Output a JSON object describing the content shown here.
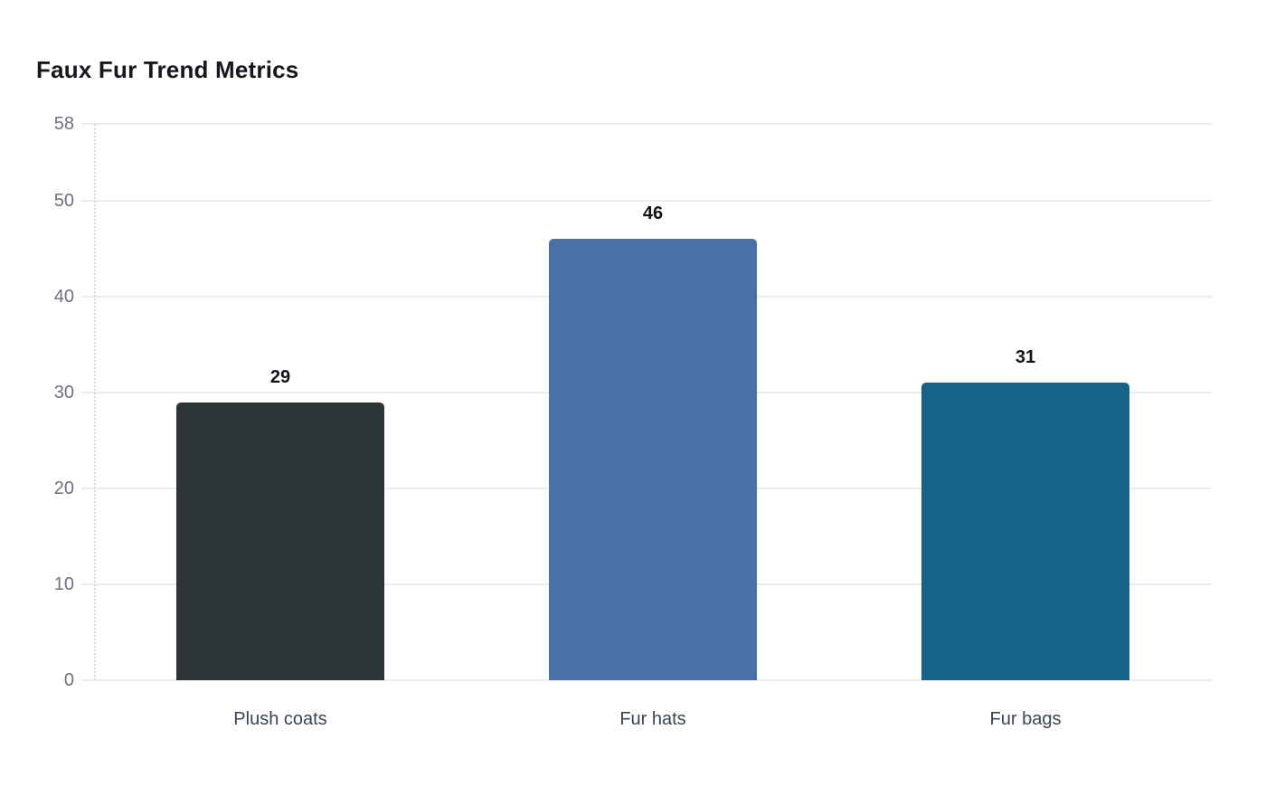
{
  "chart_data": {
    "type": "bar",
    "title": "Faux Fur Trend Metrics",
    "categories": [
      "Plush coats",
      "Fur hats",
      "Fur bags"
    ],
    "values": [
      29,
      46,
      31
    ],
    "value_labels": [
      "29",
      "46",
      "31"
    ],
    "bar_colors": [
      "#2d3438",
      "#4b70a6",
      "#176287"
    ],
    "yticks": [
      0,
      10,
      20,
      30,
      40,
      50,
      58
    ],
    "ylim": [
      0,
      58
    ],
    "xlabel": "",
    "ylabel": "",
    "grid": true,
    "legend": "none"
  },
  "colors": {
    "background": "#ffffff",
    "title": "#16181d",
    "grid": "#ececec",
    "axis_line": "#dcdcdc",
    "tick_label": "#6d727b",
    "x_label": "#3b4450",
    "value_label": "#111418"
  }
}
